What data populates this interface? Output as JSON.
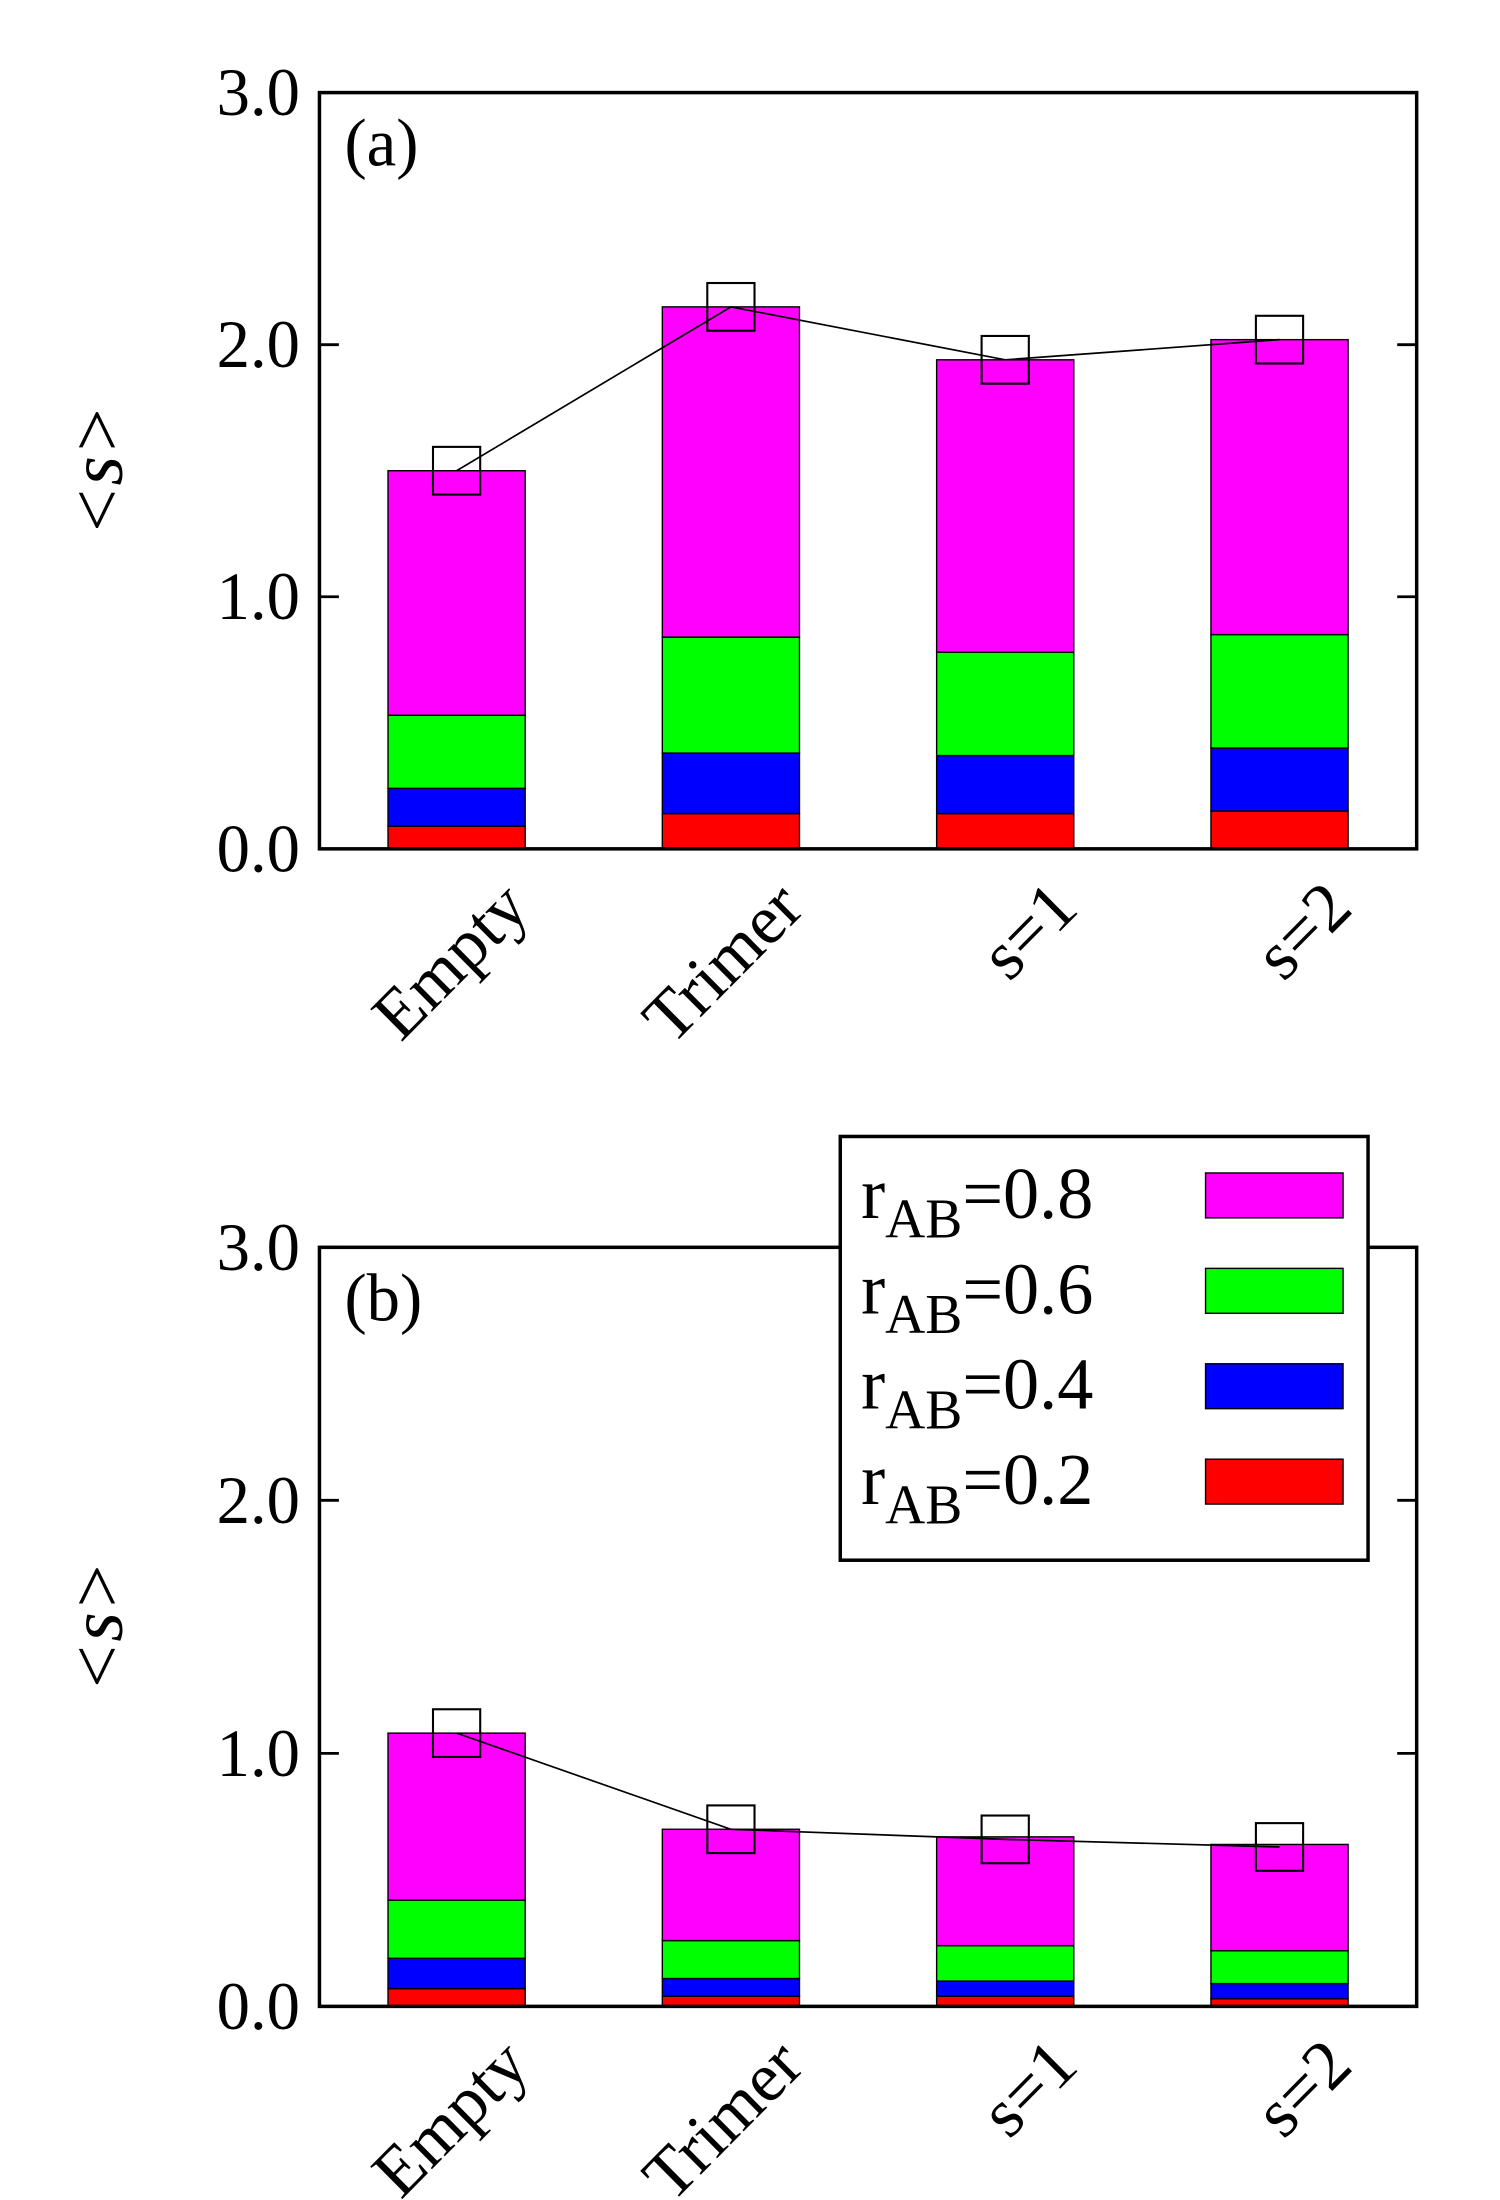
{
  "chart_data": [
    {
      "type": "bar",
      "stacked": true,
      "panel_label": "(a)",
      "ylabel": "<s>",
      "categories": [
        "Empty",
        "Trimer",
        "s=1",
        "s=2"
      ],
      "series": [
        {
          "name": "rAB=0.2",
          "color": "#ff0000",
          "values": [
            0.09,
            0.14,
            0.14,
            0.15
          ]
        },
        {
          "name": "rAB=0.4",
          "color": "#0000ff",
          "values": [
            0.15,
            0.24,
            0.23,
            0.25
          ]
        },
        {
          "name": "rAB=0.6",
          "color": "#00ff00",
          "values": [
            0.29,
            0.46,
            0.41,
            0.45
          ]
        },
        {
          "name": "rAB=0.8",
          "color": "#ff00ff",
          "values": [
            0.97,
            1.31,
            1.16,
            1.17
          ]
        }
      ],
      "line": {
        "color": "#000000",
        "values": [
          1.5,
          2.15,
          1.94,
          2.02
        ]
      },
      "ylim": [
        0,
        3
      ],
      "yticks": [
        {
          "value": 0,
          "label": "0.0"
        },
        {
          "value": 1,
          "label": "1.0"
        },
        {
          "value": 2,
          "label": "2.0"
        },
        {
          "value": 3,
          "label": "3.0"
        }
      ],
      "legend": false
    },
    {
      "type": "bar",
      "stacked": true,
      "panel_label": "(b)",
      "ylabel": "<s>",
      "categories": [
        "Empty",
        "Trimer",
        "s=1",
        "s=2"
      ],
      "series": [
        {
          "name": "rAB=0.2",
          "color": "#ff0000",
          "values": [
            0.07,
            0.04,
            0.04,
            0.03
          ]
        },
        {
          "name": "rAB=0.4",
          "color": "#0000ff",
          "values": [
            0.12,
            0.07,
            0.06,
            0.06
          ]
        },
        {
          "name": "rAB=0.6",
          "color": "#00ff00",
          "values": [
            0.23,
            0.15,
            0.14,
            0.13
          ]
        },
        {
          "name": "rAB=0.8",
          "color": "#ff00ff",
          "values": [
            0.66,
            0.44,
            0.43,
            0.42
          ]
        }
      ],
      "line": {
        "color": "#000000",
        "values": [
          1.08,
          0.7,
          0.66,
          0.63
        ]
      },
      "ylim": [
        0,
        3
      ],
      "yticks": [
        {
          "value": 0,
          "label": "0.0"
        },
        {
          "value": 1,
          "label": "1.0"
        },
        {
          "value": 2,
          "label": "2.0"
        },
        {
          "value": 3,
          "label": "3.0"
        }
      ],
      "legend": "upper right"
    }
  ]
}
